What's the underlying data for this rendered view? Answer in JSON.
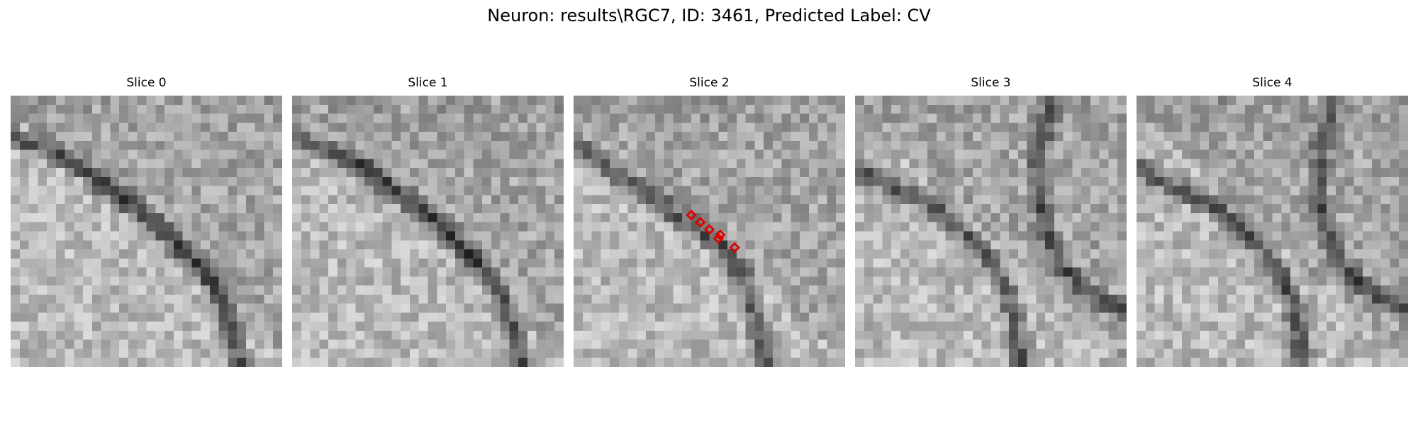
{
  "figure": {
    "title": "Neuron: results\\RGC7, ID: 3461, Predicted Label: CV"
  },
  "panels": [
    {
      "title": "Slice 0",
      "seed": 11,
      "membrane": "arc"
    },
    {
      "title": "Slice 1",
      "seed": 23,
      "membrane": "arc"
    },
    {
      "title": "Slice 2",
      "seed": 37,
      "membrane": "arc-inner",
      "annotations": "red-diamond-markers"
    },
    {
      "title": "Slice 3",
      "seed": 41,
      "membrane": "split"
    },
    {
      "title": "Slice 4",
      "seed": 59,
      "membrane": "split"
    }
  ],
  "colors": {
    "marker": "#e00000",
    "background": "#ffffff"
  }
}
